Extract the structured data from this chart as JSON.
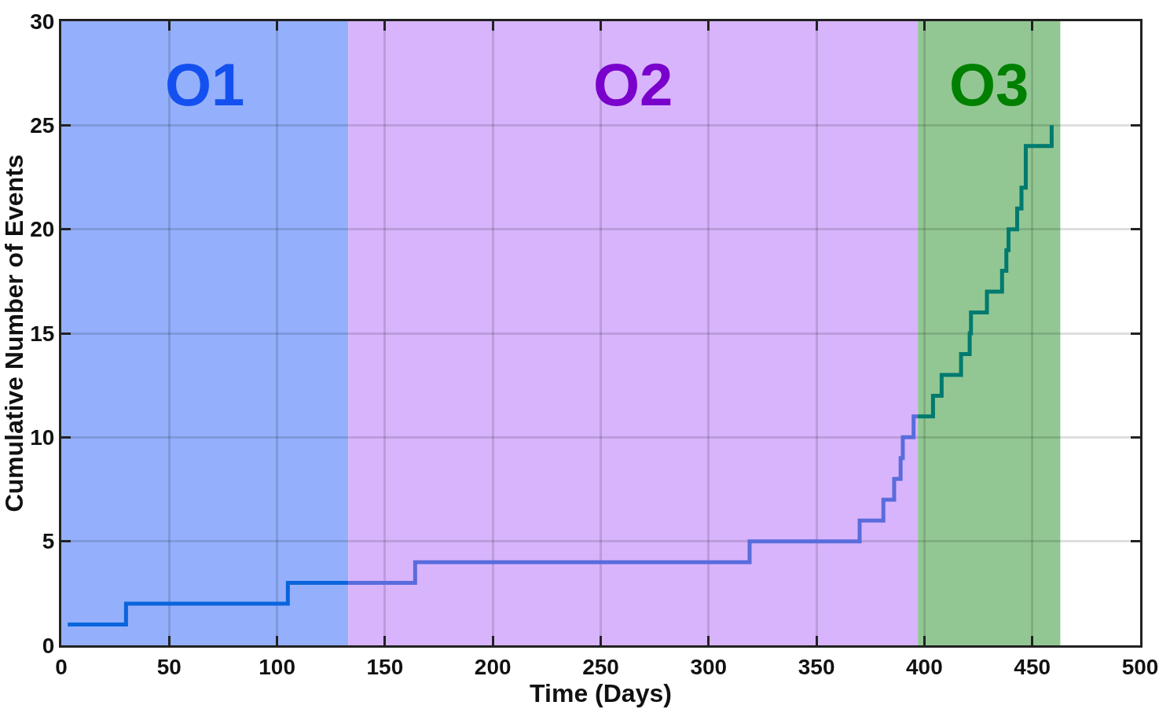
{
  "chart_data": {
    "type": "step",
    "xlabel": "Time (Days)",
    "ylabel": "Cumulative Number of Events",
    "xlim": [
      0,
      500
    ],
    "xticks": [
      0,
      50,
      100,
      150,
      200,
      250,
      300,
      350,
      400,
      450,
      500
    ],
    "ylim": [
      0,
      30
    ],
    "yticks": [
      0,
      5,
      10,
      15,
      20,
      25,
      30
    ],
    "grid": true,
    "series": [
      {
        "color": "#0a64dc",
        "x": [
          3,
          30,
          105,
          133
        ],
        "values": [
          1,
          2,
          3,
          3
        ]
      },
      {
        "color": "#5a6cdc",
        "x": [
          133,
          164,
          319,
          370,
          381,
          386,
          389,
          390,
          395,
          397
        ],
        "values": [
          3,
          4,
          5,
          6,
          7,
          8,
          9,
          10,
          11,
          11
        ]
      },
      {
        "color": "#007a6e",
        "x": [
          397,
          404,
          408,
          417,
          421,
          421.6,
          429,
          436,
          438,
          439,
          443,
          445,
          447,
          459
        ],
        "values": [
          11,
          12,
          13,
          14,
          15,
          16,
          17,
          18,
          19,
          20,
          21,
          22,
          24,
          25
        ]
      }
    ],
    "bands": [
      {
        "axis": "x",
        "from": 0,
        "to": 133,
        "label": "O1",
        "color": "#94b0fc"
      },
      {
        "axis": "x",
        "from": 133,
        "to": 397,
        "label": "O2",
        "color": "#d8b4fc"
      },
      {
        "axis": "x",
        "from": 397,
        "to": 463,
        "label": "O3",
        "color": "#92c793"
      }
    ]
  }
}
